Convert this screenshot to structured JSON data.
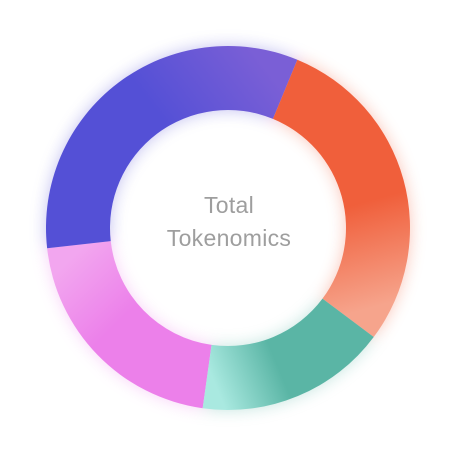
{
  "chart_data": {
    "type": "pie",
    "title": "",
    "center_label": [
      "Total",
      "Tokenomics"
    ],
    "slices": [
      {
        "value": 21,
        "color": "#ec80ea",
        "color_light": "#f2a6ef"
      },
      {
        "value": 33,
        "color": "#5450d6",
        "color_light": "#7a5fd6"
      },
      {
        "value": 29,
        "color": "#f05f3b",
        "color_light": "#f6a48c"
      },
      {
        "value": 17,
        "color": "#5ab5a5",
        "color_light": "#a9e9e0"
      }
    ],
    "start_angle_deg": 188,
    "donut": true,
    "legend": "none"
  }
}
